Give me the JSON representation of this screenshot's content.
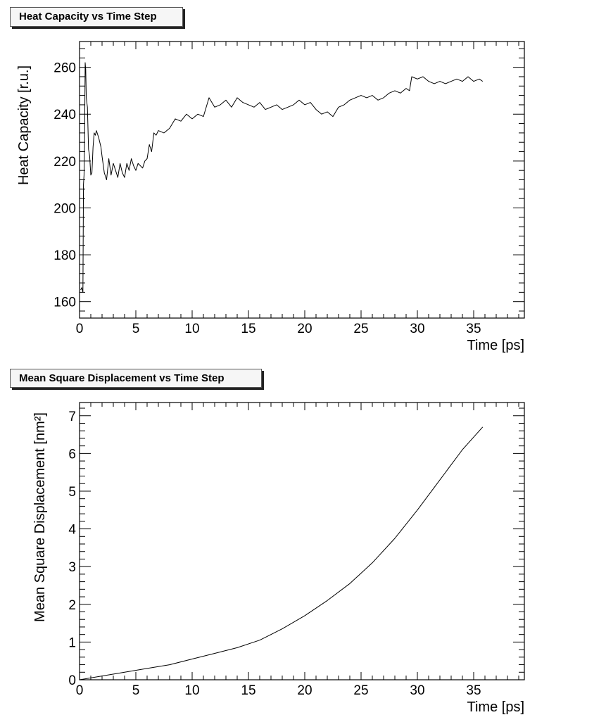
{
  "panels": {
    "heat": {
      "title": "Heat Capacity vs Time Step"
    },
    "msd": {
      "title": "Mean Square Displacement vs Time Step"
    }
  },
  "chart_data": [
    {
      "type": "line",
      "title": "Heat Capacity vs Time Step",
      "xlabel": "Time [ps]",
      "ylabel": "Heat Capacity [r.u.]",
      "xlim": [
        0,
        39.5
      ],
      "ylim": [
        153,
        271
      ],
      "xticks": [
        0,
        5,
        10,
        15,
        20,
        25,
        30,
        35
      ],
      "yticks": [
        160,
        180,
        200,
        220,
        240,
        260
      ],
      "grid": false,
      "series": [
        {
          "x": [
            0.1,
            0.2,
            0.3,
            0.35,
            0.4,
            0.45,
            0.5,
            0.55,
            0.6,
            0.7,
            0.8,
            0.9,
            1.0,
            1.1,
            1.2,
            1.3,
            1.4,
            1.5,
            1.7,
            1.9,
            2.0,
            2.2,
            2.4,
            2.6,
            2.8,
            3.0,
            3.2,
            3.4,
            3.6,
            3.8,
            4.0,
            4.2,
            4.4,
            4.6,
            4.8,
            5.0,
            5.2,
            5.4,
            5.6,
            5.8,
            6.0,
            6.2,
            6.4,
            6.6,
            6.8,
            7.0,
            7.5,
            8.0,
            8.5,
            9.0,
            9.5,
            10.0,
            10.5,
            11.0,
            11.5,
            12.0,
            12.5,
            13.0,
            13.5,
            14.0,
            14.5,
            15.0,
            15.5,
            16.0,
            16.5,
            17.0,
            17.5,
            18.0,
            18.5,
            19.0,
            19.5,
            20.0,
            20.5,
            21.0,
            21.5,
            22.0,
            22.5,
            23.0,
            23.5,
            24.0,
            24.5,
            25.0,
            25.5,
            26.0,
            26.5,
            27.0,
            27.5,
            28.0,
            28.5,
            29.0,
            29.3,
            29.5,
            30.0,
            30.5,
            31.0,
            31.5,
            32.0,
            32.5,
            33.0,
            33.5,
            34.0,
            34.5,
            35.0,
            35.5,
            35.8
          ],
          "y": [
            165,
            166,
            164,
            210,
            214,
            230,
            262,
            259,
            247,
            243,
            225,
            222,
            214,
            215,
            226,
            232,
            231,
            233,
            230,
            226,
            222,
            215,
            212,
            221,
            214,
            219,
            216,
            213,
            219,
            215,
            213,
            219,
            216,
            221,
            218,
            216,
            219,
            218,
            217,
            220,
            221,
            227,
            224,
            232,
            231,
            233,
            232,
            234,
            238,
            237,
            240,
            238,
            240,
            239,
            247,
            243,
            244,
            246,
            243,
            247,
            245,
            244,
            243,
            245,
            242,
            243,
            244,
            242,
            243,
            244,
            246,
            244,
            245,
            242,
            240,
            241,
            239,
            243,
            244,
            246,
            247,
            248,
            247,
            248,
            246,
            247,
            249,
            250,
            249,
            251,
            250,
            256,
            255,
            256,
            254,
            253,
            254,
            253,
            254,
            255,
            254,
            256,
            254,
            255,
            254
          ]
        }
      ]
    },
    {
      "type": "line",
      "title": "Mean Square Displacement vs Time Step",
      "xlabel": "Time [ps]",
      "ylabel": "Mean Square Displacement [nm²]",
      "xlim": [
        0,
        39.5
      ],
      "ylim": [
        0,
        7.35
      ],
      "xticks": [
        0,
        5,
        10,
        15,
        20,
        25,
        30,
        35
      ],
      "yticks": [
        0,
        1,
        2,
        3,
        4,
        5,
        6,
        7
      ],
      "grid": false,
      "series": [
        {
          "x": [
            0,
            2,
            4,
            6,
            8,
            10,
            12,
            14,
            16,
            18,
            20,
            22,
            24,
            26,
            28,
            30,
            32,
            34,
            35.8
          ],
          "y": [
            0.0,
            0.1,
            0.2,
            0.3,
            0.4,
            0.55,
            0.7,
            0.85,
            1.05,
            1.35,
            1.7,
            2.1,
            2.55,
            3.1,
            3.75,
            4.5,
            5.3,
            6.1,
            6.7
          ]
        }
      ]
    }
  ]
}
